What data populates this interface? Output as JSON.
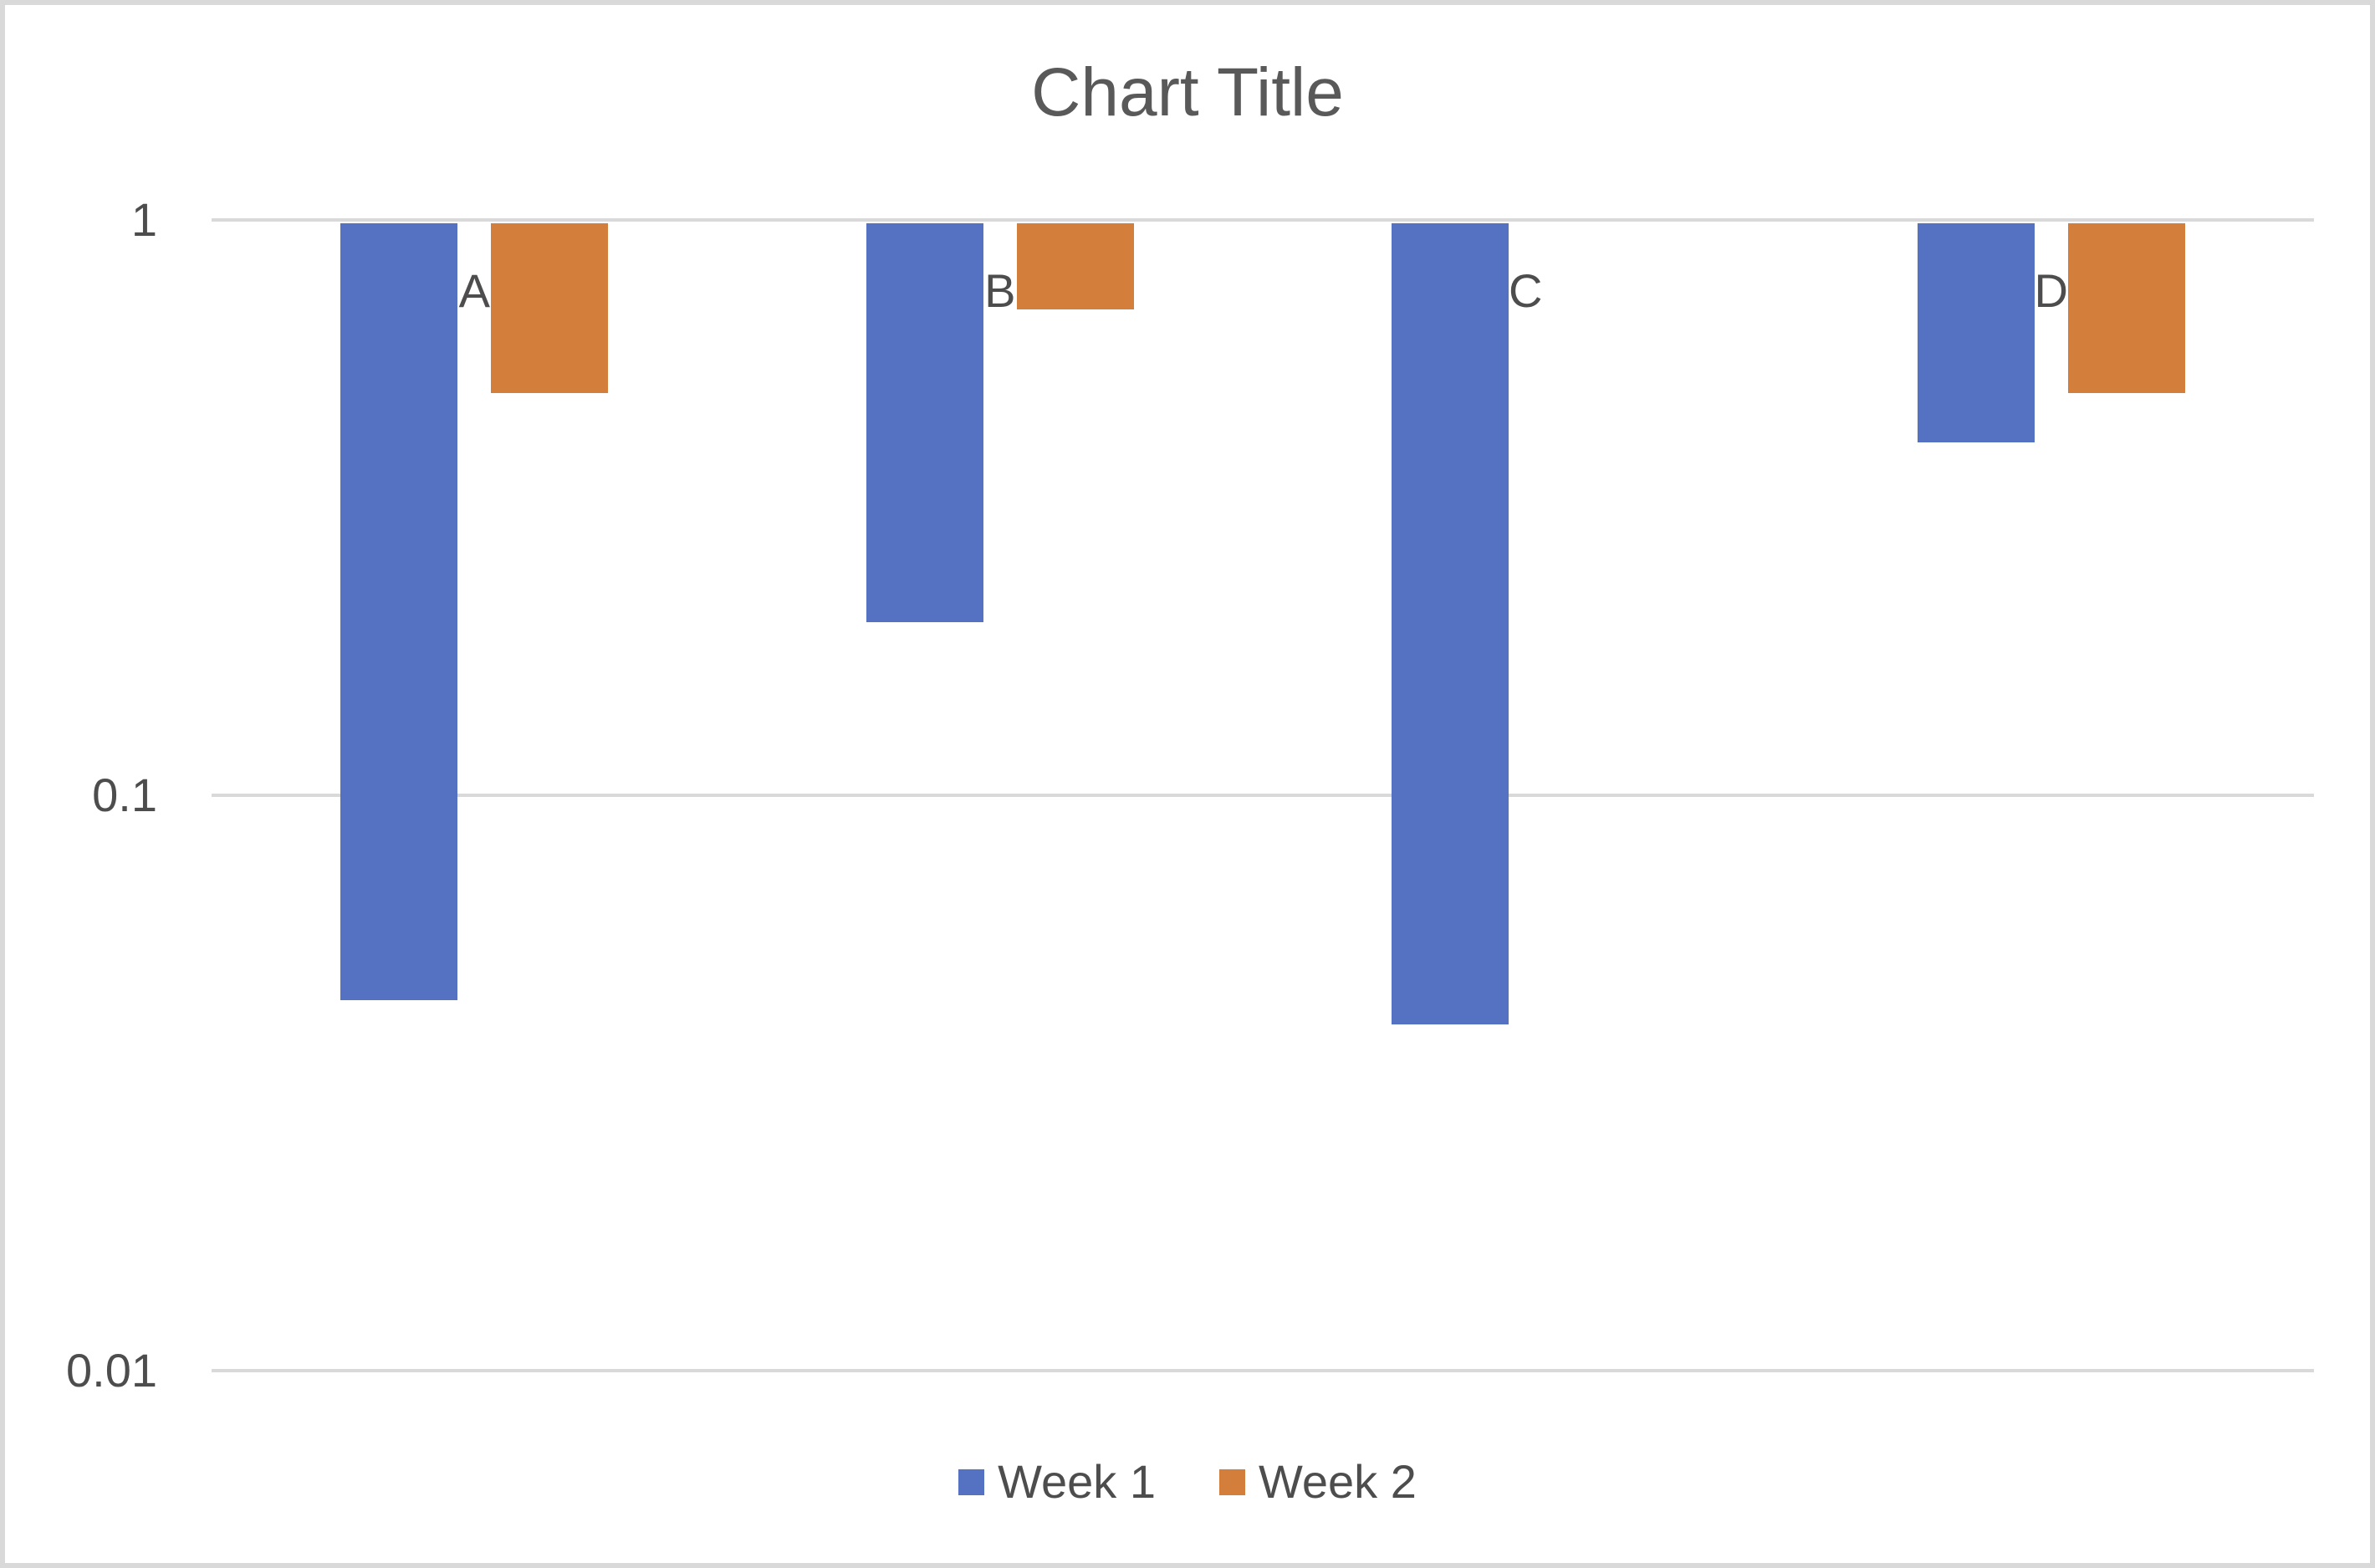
{
  "chart_data": {
    "type": "bar",
    "title": "Chart Title",
    "categories": [
      "A",
      "B",
      "C",
      "D"
    ],
    "series": [
      {
        "name": "Week 1",
        "color": "#5571C1",
        "values": [
          0.044,
          0.2,
          0.04,
          0.41
        ]
      },
      {
        "name": "Week 2",
        "color": "#D47E3B",
        "values": [
          0.5,
          0.7,
          null,
          0.5
        ]
      }
    ],
    "y_axis": {
      "scale": "log",
      "ticks": [
        1,
        0.1,
        0.01
      ],
      "tick_labels": [
        "1",
        "0.1",
        "0.01"
      ],
      "max": 1,
      "min": 0.01,
      "bar_baseline": 1
    },
    "grid": true,
    "gridline_color": "#d9d9d9",
    "legend_position": "bottom"
  }
}
